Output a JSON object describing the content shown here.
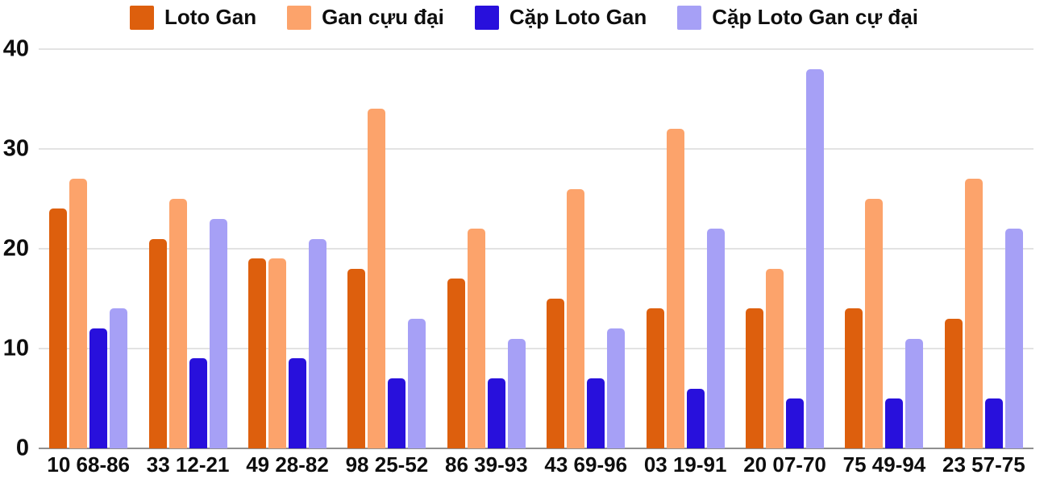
{
  "chart_data": {
    "type": "bar",
    "title": "",
    "xlabel": "",
    "ylabel": "",
    "categories": [
      "10 68-86",
      "33 12-21",
      "49 28-82",
      "98 25-52",
      "86 39-93",
      "43 69-96",
      "03 19-91",
      "20 07-70",
      "75 49-94",
      "23 57-75"
    ],
    "series": [
      {
        "name": "Loto Gan",
        "color": "#DD5F0D",
        "values": [
          24,
          21,
          19,
          18,
          17,
          15,
          14,
          14,
          14,
          13
        ]
      },
      {
        "name": "Gan cựu đại",
        "color": "#FCA36B",
        "values": [
          27,
          25,
          19,
          34,
          22,
          26,
          32,
          18,
          25,
          27
        ]
      },
      {
        "name": "Cặp Loto Gan",
        "color": "#2810DC",
        "values": [
          12,
          9,
          9,
          7,
          7,
          7,
          6,
          5,
          5,
          5
        ]
      },
      {
        "name": "Cặp Loto Gan cự đại",
        "color": "#A6A0F6",
        "values": [
          14,
          23,
          21,
          13,
          11,
          12,
          22,
          38,
          11,
          22
        ]
      }
    ],
    "ylim": [
      0,
      40
    ],
    "yticks": [
      0,
      10,
      20,
      30,
      40
    ],
    "grid": true,
    "legend_position": "top"
  },
  "styles": {
    "background": "#FFFFFF",
    "gridline_color": "#E3E3E3",
    "axis_line_color": "#8F8F8F",
    "text_color": "#0E0E0E"
  }
}
